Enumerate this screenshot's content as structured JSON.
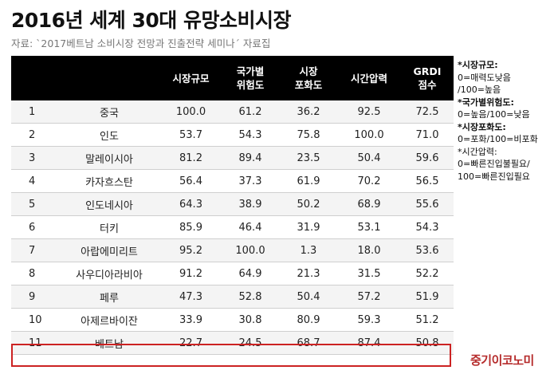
{
  "title": "2016년 세계 30대 유망소비시장",
  "subtitle": "자료: `2017베트남 소비시장 전망과 진출전략 세미나´ 자료집",
  "table": {
    "headers": [
      "",
      "",
      "시장규모",
      "국가별\n위험도",
      "시장\n포화도",
      "시간압력",
      "GRDI\n점수"
    ],
    "rows": [
      [
        "1",
        "중국",
        "100.0",
        "61.2",
        "36.2",
        "92.5",
        "72.5"
      ],
      [
        "2",
        "인도",
        "53.7",
        "54.3",
        "75.8",
        "100.0",
        "71.0"
      ],
      [
        "3",
        "말레이시아",
        "81.2",
        "89.4",
        "23.5",
        "50.4",
        "59.6"
      ],
      [
        "4",
        "카자흐스탄",
        "56.4",
        "37.3",
        "61.9",
        "70.2",
        "56.5"
      ],
      [
        "5",
        "인도네시아",
        "64.3",
        "38.9",
        "50.2",
        "68.9",
        "55.6"
      ],
      [
        "6",
        "터키",
        "85.9",
        "46.4",
        "31.9",
        "53.1",
        "54.3"
      ],
      [
        "7",
        "아랍에미리트",
        "95.2",
        "100.0",
        "1.3",
        "18.0",
        "53.6"
      ],
      [
        "8",
        "사우디아라비아",
        "91.2",
        "64.9",
        "21.3",
        "31.5",
        "52.2"
      ],
      [
        "9",
        "페루",
        "47.3",
        "52.8",
        "50.4",
        "57.2",
        "51.9"
      ],
      [
        "10",
        "아제르바이잔",
        "33.9",
        "30.8",
        "80.9",
        "59.3",
        "51.2"
      ],
      [
        "11",
        "베트남",
        "22.7",
        "24.5",
        "68.7",
        "87.4",
        "50.8"
      ]
    ]
  },
  "notes": [
    {
      "text": "*시장규모:",
      "bold": true
    },
    {
      "text": "0=매력도낮음",
      "bold": false
    },
    {
      "text": "/100=높음",
      "bold": false
    },
    {
      "text": "*국가별위험도:",
      "bold": true
    },
    {
      "text": "0=높음/100=낮음",
      "bold": false
    },
    {
      "text": "*시장포화도:",
      "bold": true
    },
    {
      "text": "0=포화/100=비포화",
      "bold": false
    },
    {
      "text": "*시간압력:",
      "bold": false
    },
    {
      "text": "0=빠른진입불필요/",
      "bold": false
    },
    {
      "text": "100=빠른진입필요",
      "bold": false
    }
  ],
  "logo": "중기이코노미",
  "colors": {
    "header_bg": "#000000",
    "highlight": "#cc2222",
    "logo": "#b52a2a"
  }
}
